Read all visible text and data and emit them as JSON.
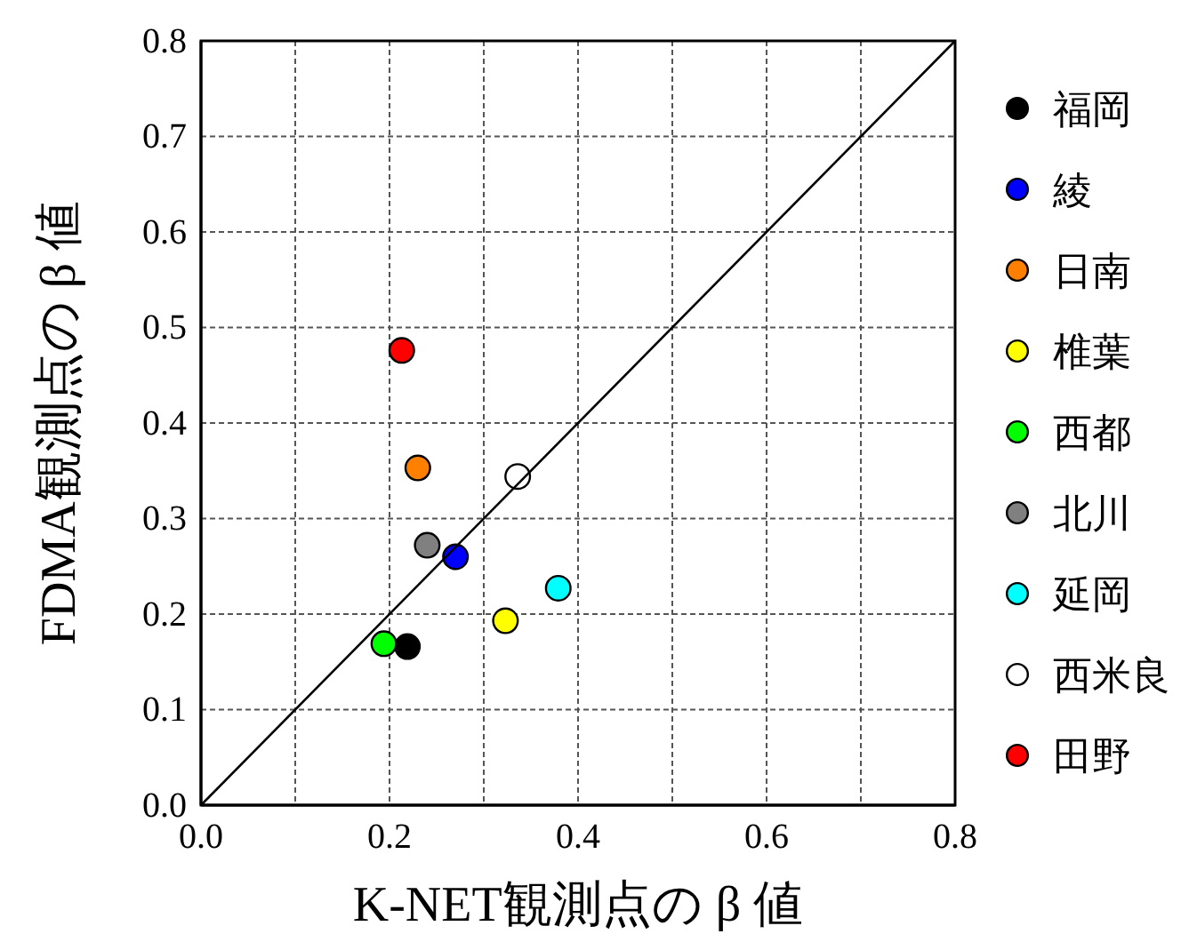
{
  "chart_data": {
    "type": "scatter",
    "xlabel": "K-NET観測点の β 値",
    "ylabel": "FDMA観測点の β 値",
    "xlim": [
      0,
      0.8
    ],
    "ylim": [
      0,
      0.8
    ],
    "xticks": [
      {
        "value": 0,
        "label": "0.0"
      },
      {
        "value": 0.1,
        "label": null
      },
      0.2,
      {
        "value": 0.3,
        "label": null
      },
      0.4,
      {
        "value": 0.5,
        "label": null
      },
      0.6,
      {
        "value": 0.7,
        "label": null
      },
      0.8
    ],
    "yticks": [
      {
        "value": 0,
        "label": "0.0"
      },
      0.1,
      0.2,
      0.3,
      0.4,
      0.5,
      0.6,
      0.7,
      0.8
    ],
    "grid": true,
    "legend": "right",
    "marker": "circle",
    "series": [
      {
        "name": "福岡",
        "color": "#000000",
        "x": [
          0.219
        ],
        "values": [
          0.166
        ]
      },
      {
        "name": "綾",
        "color": "#0000ff",
        "x": [
          0.27
        ],
        "values": [
          0.26
        ]
      },
      {
        "name": "日南",
        "color": "#ff8000",
        "x": [
          0.23
        ],
        "values": [
          0.353
        ]
      },
      {
        "name": "椎葉",
        "color": "#ffff00",
        "x": [
          0.323
        ],
        "values": [
          0.193
        ]
      },
      {
        "name": "西都",
        "color": "#00ff00",
        "x": [
          0.194
        ],
        "values": [
          0.169
        ]
      },
      {
        "name": "北川",
        "color": "#808080",
        "x": [
          0.24
        ],
        "values": [
          0.272
        ]
      },
      {
        "name": "延岡",
        "color": "#00ffff",
        "x": [
          0.379
        ],
        "values": [
          0.227
        ]
      },
      {
        "name": "西米良",
        "color": "#ffffff",
        "x": [
          0.336
        ],
        "values": [
          0.344
        ]
      },
      {
        "name": "田野",
        "color": "#ff0000",
        "x": [
          0.213
        ],
        "values": [
          0.476
        ]
      },
      {
        "type": "line",
        "color": "#000000",
        "x": [
          0,
          0.8
        ],
        "values": [
          0,
          0.8
        ],
        "marker": "none",
        "line_style": "solid"
      }
    ]
  }
}
